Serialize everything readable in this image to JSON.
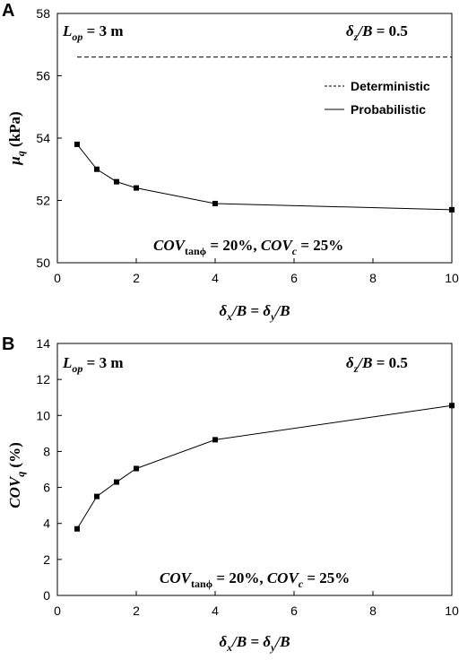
{
  "panels": [
    {
      "label": "A",
      "annotations": {
        "left_main": "L",
        "left_sub": "op",
        "left_rest": " = 3 m",
        "right_main": "δ",
        "right_sub": "z",
        "right_rest": "/B = 0.5",
        "bottom_a": "COV",
        "bottom_a_sub": "tanϕ",
        "bottom_b": " = 20%, ",
        "bottom_c": "COV",
        "bottom_c_sub": "c",
        "bottom_d": " = 25%"
      },
      "ylabel_main": "μ",
      "ylabel_sub": "q",
      "ylabel_rest": " (kPa)",
      "xlabel": {
        "p1": "δ",
        "s1": "x",
        "p2": "/B = ",
        "p3": "δ",
        "s2": "y",
        "p4": "/B"
      },
      "legend": [
        "Deterministic",
        "Probabilistic"
      ],
      "chart_data": {
        "type": "line",
        "x": [
          0.5,
          1,
          1.5,
          2,
          4,
          10
        ],
        "series": [
          {
            "name": "Probabilistic",
            "values": [
              53.8,
              53.0,
              52.6,
              52.4,
              51.9,
              51.7
            ]
          },
          {
            "name": "Deterministic",
            "values": [
              56.6,
              56.6
            ],
            "x": [
              0.5,
              10
            ]
          }
        ],
        "xlim": [
          0,
          10
        ],
        "ylim": [
          50,
          58
        ],
        "xticks": [
          0,
          2,
          4,
          6,
          8,
          10
        ],
        "yticks": [
          50,
          52,
          54,
          56,
          58
        ],
        "legend_position": "top-right"
      }
    },
    {
      "label": "B",
      "annotations": {
        "left_main": "L",
        "left_sub": "op",
        "left_rest": " = 3 m",
        "right_main": "δ",
        "right_sub": "z",
        "right_rest": "/B = 0.5",
        "bottom_a": "COV",
        "bottom_a_sub": "tanϕ",
        "bottom_b": " = 20%, ",
        "bottom_c": "COV",
        "bottom_c_sub": "c",
        "bottom_d": " = 25%"
      },
      "ylabel_main": "COV",
      "ylabel_sub": "q",
      "ylabel_rest": " (%)",
      "xlabel": {
        "p1": "δ",
        "s1": "x",
        "p2": "/B = ",
        "p3": "δ",
        "s2": "y",
        "p4": "/B"
      },
      "chart_data": {
        "type": "line",
        "x": [
          0.5,
          1,
          1.5,
          2,
          4,
          10
        ],
        "series": [
          {
            "name": "",
            "values": [
              3.7,
              5.5,
              6.3,
              7.05,
              8.65,
              10.55
            ]
          }
        ],
        "xlim": [
          0,
          10
        ],
        "ylim": [
          0,
          14
        ],
        "xticks": [
          0,
          2,
          4,
          6,
          8,
          10
        ],
        "yticks": [
          0,
          2,
          4,
          6,
          8,
          10,
          12,
          14
        ]
      }
    }
  ]
}
